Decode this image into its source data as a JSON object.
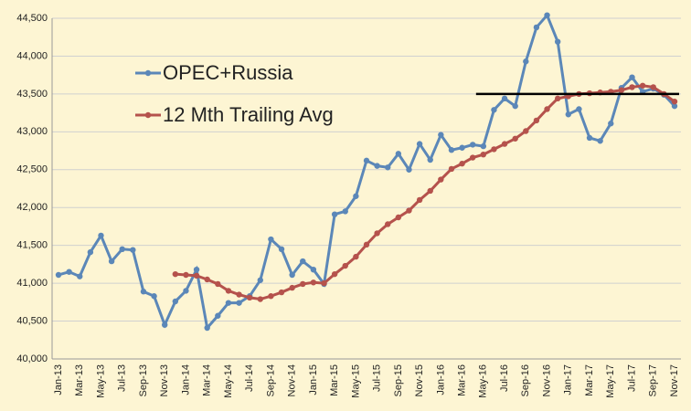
{
  "chart_data": {
    "type": "line",
    "categories": [
      "Jan-13",
      null,
      "Mar-13",
      null,
      "May-13",
      null,
      "Jul-13",
      null,
      "Sep-13",
      null,
      "Nov-13",
      null,
      "Jan-14",
      null,
      "Mar-14",
      null,
      "May-14",
      null,
      "Jul-14",
      null,
      "Sep-14",
      null,
      "Nov-14",
      null,
      "Jan-15",
      null,
      "Mar-15",
      null,
      "May-15",
      null,
      "Jul-15",
      null,
      "Sep-15",
      null,
      "Nov-15",
      null,
      "Jan-16",
      null,
      "Mar-16",
      null,
      "May-16",
      null,
      "Jul-16",
      null,
      "Sep-16",
      null,
      "Nov-16",
      null,
      "Jan-17",
      null,
      "Mar-17",
      null,
      "May-17",
      null,
      "Jul-17",
      null,
      "Sep-17",
      null,
      "Nov-17"
    ],
    "series": [
      {
        "name": "OPEC+Russia",
        "color": "#5b87b8",
        "values": [
          41110,
          41150,
          41090,
          41410,
          41630,
          41290,
          41450,
          41440,
          40890,
          40830,
          40450,
          40760,
          40900,
          41180,
          40410,
          40570,
          40740,
          40740,
          40830,
          41040,
          41580,
          41450,
          41110,
          41290,
          41180,
          40990,
          41910,
          41950,
          42150,
          42620,
          42550,
          42530,
          42710,
          42500,
          42840,
          42630,
          42960,
          42760,
          42790,
          42830,
          42810,
          43290,
          43440,
          43340,
          43930,
          44380,
          44540,
          44190,
          43230,
          43300,
          42920,
          42880,
          43110,
          43580,
          43720,
          43530,
          43570,
          43490,
          43340
        ]
      },
      {
        "name": "12 Mth Trailing Avg",
        "color": "#b5524c",
        "values": [
          null,
          null,
          null,
          null,
          null,
          null,
          null,
          null,
          null,
          null,
          null,
          41120,
          41110,
          41100,
          41050,
          40990,
          40900,
          40850,
          40810,
          40790,
          40830,
          40880,
          40940,
          40990,
          41010,
          41000,
          41120,
          41230,
          41350,
          41510,
          41660,
          41780,
          41870,
          41960,
          42100,
          42220,
          42370,
          42510,
          42580,
          42660,
          42700,
          42770,
          42840,
          42910,
          43010,
          43150,
          43300,
          43440,
          43470,
          43500,
          43510,
          43520,
          43530,
          43550,
          43590,
          43610,
          43590,
          43500,
          43400
        ]
      }
    ],
    "ylim": [
      40000,
      44500
    ],
    "yticks": [
      {
        "value": 40000,
        "label": "40,000"
      },
      {
        "value": 40500,
        "label": "40,500"
      },
      {
        "value": 41000,
        "label": "41,000"
      },
      {
        "value": 41500,
        "label": "41,500"
      },
      {
        "value": 42000,
        "label": "42,000"
      },
      {
        "value": 42500,
        "label": "42,500"
      },
      {
        "value": 43000,
        "label": "43,000"
      },
      {
        "value": 43500,
        "label": "43,500"
      },
      {
        "value": 44000,
        "label": "44,000"
      },
      {
        "value": 44500,
        "label": "44,500"
      }
    ],
    "grid": true,
    "legend": "upper-left",
    "reference_line": {
      "y": 43500,
      "from": "May-16",
      "color": "#000000"
    }
  }
}
